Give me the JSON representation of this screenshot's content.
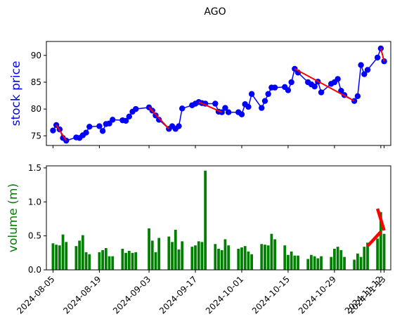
{
  "chart_data": [
    {
      "type": "line",
      "title": "AGO",
      "ylabel": "stock price",
      "ylabel_color": "#0000ff",
      "ylim": [
        73.2,
        92.6
      ],
      "yticks": [
        75,
        80,
        85,
        90
      ],
      "xlim": [
        "2024-08-03",
        "2024-11-15"
      ],
      "series": [
        {
          "color": "#0000ff",
          "marker": "circle",
          "points": [
            [
              "2024-08-05",
              76.0
            ],
            [
              "2024-08-06",
              77.0
            ],
            [
              "2024-08-07",
              76.2
            ],
            [
              "2024-08-08",
              74.6
            ],
            [
              "2024-08-09",
              74.1
            ],
            [
              "2024-08-12",
              74.7
            ],
            [
              "2024-08-13",
              74.6
            ],
            [
              "2024-08-14",
              75.1
            ],
            [
              "2024-08-15",
              75.6
            ],
            [
              "2024-08-16",
              76.7
            ],
            [
              "2024-08-19",
              76.8
            ],
            [
              "2024-08-20",
              75.9
            ],
            [
              "2024-08-21",
              77.2
            ],
            [
              "2024-08-22",
              77.3
            ],
            [
              "2024-08-23",
              78.0
            ],
            [
              "2024-08-26",
              77.9
            ],
            [
              "2024-08-27",
              77.8
            ],
            [
              "2024-08-28",
              78.6
            ],
            [
              "2024-08-29",
              79.5
            ],
            [
              "2024-08-30",
              80.0
            ],
            [
              "2024-09-03",
              80.3
            ],
            [
              "2024-09-04",
              79.7
            ],
            [
              "2024-09-05",
              78.8
            ],
            [
              "2024-09-06",
              78.0
            ],
            [
              "2024-09-09",
              76.3
            ],
            [
              "2024-09-10",
              76.8
            ],
            [
              "2024-09-11",
              76.3
            ],
            [
              "2024-09-12",
              76.8
            ],
            [
              "2024-09-13",
              80.1
            ],
            [
              "2024-09-16",
              80.7
            ],
            [
              "2024-09-17",
              81.0
            ],
            [
              "2024-09-18",
              81.3
            ],
            [
              "2024-09-19",
              81.1
            ],
            [
              "2024-09-20",
              81.0
            ],
            [
              "2024-09-23",
              81.0
            ],
            [
              "2024-09-24",
              79.5
            ],
            [
              "2024-09-25",
              79.4
            ],
            [
              "2024-09-26",
              80.2
            ],
            [
              "2024-09-27",
              79.4
            ],
            [
              "2024-09-30",
              79.4
            ],
            [
              "2024-10-01",
              79.0
            ],
            [
              "2024-10-02",
              80.9
            ],
            [
              "2024-10-03",
              80.4
            ],
            [
              "2024-10-04",
              82.8
            ],
            [
              "2024-10-07",
              80.2
            ],
            [
              "2024-10-08",
              81.5
            ],
            [
              "2024-10-09",
              82.8
            ],
            [
              "2024-10-10",
              84.0
            ],
            [
              "2024-10-11",
              84.0
            ],
            [
              "2024-10-14",
              84.1
            ],
            [
              "2024-10-15",
              83.5
            ],
            [
              "2024-10-16",
              85.0
            ],
            [
              "2024-10-17",
              87.5
            ],
            [
              "2024-10-18",
              86.8
            ],
            [
              "2024-10-21",
              85.0
            ],
            [
              "2024-10-22",
              84.6
            ],
            [
              "2024-10-23",
              84.2
            ],
            [
              "2024-10-24",
              85.1
            ],
            [
              "2024-10-25",
              83.1
            ],
            [
              "2024-10-28",
              84.7
            ],
            [
              "2024-10-29",
              85.0
            ],
            [
              "2024-10-30",
              85.6
            ],
            [
              "2024-10-31",
              83.4
            ],
            [
              "2024-11-01",
              82.6
            ],
            [
              "2024-11-04",
              81.5
            ],
            [
              "2024-11-05",
              82.4
            ],
            [
              "2024-11-06",
              88.2
            ],
            [
              "2024-11-07",
              86.5
            ],
            [
              "2024-11-08",
              87.3
            ],
            [
              "2024-11-11",
              89.6
            ],
            [
              "2024-11-12",
              91.3
            ],
            [
              "2024-11-13",
              88.9
            ]
          ]
        },
        {
          "color": "#ff0000",
          "points": [
            [
              "2024-08-06",
              77.0
            ],
            [
              "2024-08-09",
              74.1
            ]
          ]
        },
        {
          "color": "#ff0000",
          "points": [
            [
              "2024-09-03",
              80.3
            ],
            [
              "2024-09-09",
              76.3
            ]
          ]
        },
        {
          "color": "#ff0000",
          "points": [
            [
              "2024-09-18",
              81.3
            ],
            [
              "2024-09-25",
              79.4
            ]
          ]
        },
        {
          "color": "#ff0000",
          "points": [
            [
              "2024-10-17",
              87.5
            ],
            [
              "2024-11-04",
              81.5
            ]
          ]
        },
        {
          "color": "#ff0000",
          "points": [
            [
              "2024-11-12",
              91.3
            ],
            [
              "2024-11-13",
              88.9
            ]
          ]
        }
      ]
    },
    {
      "type": "bar",
      "ylabel": "volume (m)",
      "ylabel_color": "#008000",
      "bar_color": "#008000",
      "ylim": [
        0,
        1.53
      ],
      "yticks": [
        "0.0",
        "0.5",
        "1.0",
        "1.5"
      ],
      "xlim": [
        "2024-08-03",
        "2024-11-15"
      ],
      "xticks": [
        "2024-08-05",
        "2024-08-19",
        "2024-09-03",
        "2024-09-17",
        "2024-10-01",
        "2024-10-15",
        "2024-10-29",
        "2024-11-12",
        "2024-11-13"
      ],
      "dates": [
        "2024-08-05",
        "2024-08-06",
        "2024-08-07",
        "2024-08-08",
        "2024-08-09",
        "2024-08-12",
        "2024-08-13",
        "2024-08-14",
        "2024-08-15",
        "2024-08-16",
        "2024-08-19",
        "2024-08-20",
        "2024-08-21",
        "2024-08-22",
        "2024-08-23",
        "2024-08-26",
        "2024-08-27",
        "2024-08-28",
        "2024-08-29",
        "2024-08-30",
        "2024-09-03",
        "2024-09-04",
        "2024-09-05",
        "2024-09-06",
        "2024-09-09",
        "2024-09-10",
        "2024-09-11",
        "2024-09-12",
        "2024-09-13",
        "2024-09-16",
        "2024-09-17",
        "2024-09-18",
        "2024-09-19",
        "2024-09-20",
        "2024-09-23",
        "2024-09-24",
        "2024-09-25",
        "2024-09-26",
        "2024-09-27",
        "2024-09-30",
        "2024-10-01",
        "2024-10-02",
        "2024-10-03",
        "2024-10-04",
        "2024-10-07",
        "2024-10-08",
        "2024-10-09",
        "2024-10-10",
        "2024-10-11",
        "2024-10-14",
        "2024-10-15",
        "2024-10-16",
        "2024-10-17",
        "2024-10-18",
        "2024-10-21",
        "2024-10-22",
        "2024-10-23",
        "2024-10-24",
        "2024-10-25",
        "2024-10-28",
        "2024-10-29",
        "2024-10-30",
        "2024-10-31",
        "2024-11-01",
        "2024-11-04",
        "2024-11-05",
        "2024-11-06",
        "2024-11-07",
        "2024-11-08",
        "2024-11-11",
        "2024-11-12",
        "2024-11-13"
      ],
      "values": [
        0.39,
        0.37,
        0.36,
        0.52,
        0.41,
        0.35,
        0.43,
        0.51,
        0.26,
        0.23,
        0.26,
        0.29,
        0.32,
        0.2,
        0.2,
        0.31,
        0.25,
        0.28,
        0.25,
        0.26,
        0.61,
        0.43,
        0.26,
        0.47,
        0.49,
        0.41,
        0.59,
        0.3,
        0.42,
        0.34,
        0.36,
        0.42,
        0.41,
        1.46,
        0.38,
        0.31,
        0.29,
        0.45,
        0.36,
        0.31,
        0.33,
        0.35,
        0.27,
        0.23,
        0.38,
        0.37,
        0.36,
        0.53,
        0.45,
        0.36,
        0.22,
        0.27,
        0.21,
        0.21,
        0.16,
        0.22,
        0.2,
        0.17,
        0.2,
        0.19,
        0.31,
        0.34,
        0.29,
        0.19,
        0.15,
        0.24,
        0.19,
        0.34,
        0.4,
        0.46,
        0.85,
        0.53
      ],
      "trend_lines": [
        {
          "color": "#ff0000",
          "points": [
            [
              "2024-11-08",
              0.35
            ],
            [
              "2024-11-12",
              0.56
            ]
          ]
        },
        {
          "color": "#ff0000",
          "points": [
            [
              "2024-11-11",
              0.9
            ],
            [
              "2024-11-13",
              0.58
            ]
          ]
        }
      ]
    }
  ]
}
